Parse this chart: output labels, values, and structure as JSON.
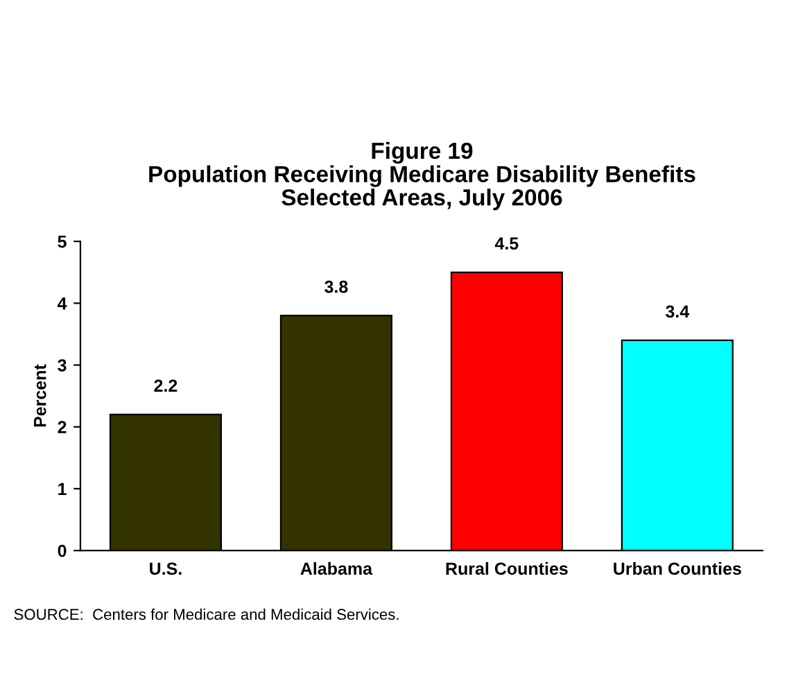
{
  "chart_data": {
    "type": "bar",
    "title": "Figure 19\nPopulation Receiving Medicare Disability Benefits\nSelected Areas, July 2006",
    "ylabel": "Percent",
    "categories": [
      "U.S.",
      "Alabama",
      "Rural Counties",
      "Urban Counties"
    ],
    "values": [
      2.2,
      3.8,
      4.5,
      3.4
    ],
    "colors": [
      "#333300",
      "#333300",
      "#ff0000",
      "#00ffff"
    ],
    "ylim": [
      0,
      5
    ],
    "yticks": [
      0,
      1,
      2,
      3,
      4,
      5
    ],
    "data_labels": true,
    "grid": false,
    "legend": false,
    "annotations": [
      "SOURCE:  Centers for Medicare and Medicaid Services."
    ]
  }
}
